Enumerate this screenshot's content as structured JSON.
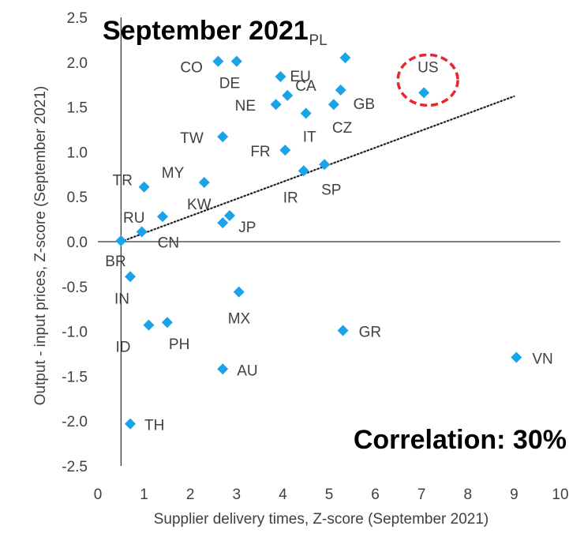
{
  "chart_data": {
    "type": "scatter",
    "title": "September 2021",
    "annotation": "Correlation: 30%",
    "xlabel": "Supplier delivery times, Z-score (September 2021)",
    "ylabel": "Output - input prices, Z-score (September 2021)",
    "xlim": [
      0,
      10
    ],
    "ylim": [
      -2.5,
      2.5
    ],
    "x_ticks": [
      "0",
      "1",
      "2",
      "3",
      "4",
      "5",
      "6",
      "7",
      "8",
      "9",
      "10"
    ],
    "y_ticks": [
      "2.5",
      "2.0",
      "1.5",
      "1.0",
      "0.5",
      "0.0",
      "-0.5",
      "-1.0",
      "-1.5",
      "-2.0",
      "-2.5"
    ],
    "grid": false,
    "marker_color": "#1AA3E8",
    "highlight_color": "#E8262C",
    "trendline": {
      "style": "dotted",
      "color": "#222222",
      "from": [
        0.5,
        0.0
      ],
      "to": [
        9.0,
        1.62
      ]
    },
    "highlight": "US",
    "points": [
      {
        "label": "CO",
        "x": 2.6,
        "y": 2.01
      },
      {
        "label": "DE",
        "x": 3.0,
        "y": 2.01
      },
      {
        "label": "EU",
        "x": 3.95,
        "y": 1.84
      },
      {
        "label": "PL",
        "x": 5.35,
        "y": 2.05
      },
      {
        "label": "CA",
        "x": 4.1,
        "y": 1.63
      },
      {
        "label": "GB",
        "x": 5.25,
        "y": 1.69
      },
      {
        "label": "US",
        "x": 7.05,
        "y": 1.66
      },
      {
        "label": "NE",
        "x": 3.85,
        "y": 1.53
      },
      {
        "label": "IT",
        "x": 4.5,
        "y": 1.43
      },
      {
        "label": "CZ",
        "x": 5.1,
        "y": 1.53
      },
      {
        "label": "TW",
        "x": 2.7,
        "y": 1.17
      },
      {
        "label": "FR",
        "x": 4.05,
        "y": 1.02
      },
      {
        "label": "MY",
        "x": 2.3,
        "y": 0.66
      },
      {
        "label": "TR",
        "x": 1.0,
        "y": 0.61
      },
      {
        "label": "IR",
        "x": 4.45,
        "y": 0.79
      },
      {
        "label": "SP",
        "x": 4.9,
        "y": 0.86
      },
      {
        "label": "KW",
        "x": 2.85,
        "y": 0.29
      },
      {
        "label": "JP",
        "x": 2.7,
        "y": 0.21
      },
      {
        "label": "RU",
        "x": 1.4,
        "y": 0.28
      },
      {
        "label": "CN",
        "x": 0.95,
        "y": 0.11
      },
      {
        "label": "BR",
        "x": 0.5,
        "y": 0.01
      },
      {
        "label": "IN",
        "x": 0.7,
        "y": -0.39
      },
      {
        "label": "MX",
        "x": 3.05,
        "y": -0.56
      },
      {
        "label": "ID",
        "x": 1.1,
        "y": -0.93
      },
      {
        "label": "PH",
        "x": 1.5,
        "y": -0.9
      },
      {
        "label": "GR",
        "x": 5.3,
        "y": -0.99
      },
      {
        "label": "AU",
        "x": 2.7,
        "y": -1.42
      },
      {
        "label": "VN",
        "x": 9.05,
        "y": -1.29
      },
      {
        "label": "TH",
        "x": 0.7,
        "y": -2.03
      }
    ]
  }
}
